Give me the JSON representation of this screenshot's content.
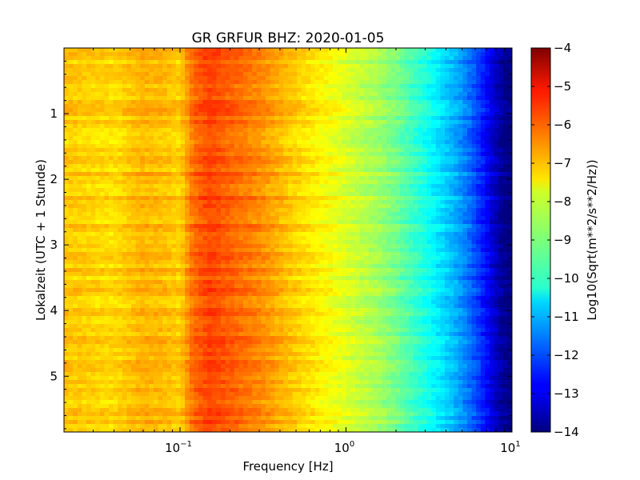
{
  "chart_data": {
    "type": "heatmap",
    "title": "GR GRFUR BHZ: 2020-01-05",
    "xlabel": "Frequency [Hz]",
    "ylabel": "Lokalzeit (UTC + 1 Stunde)",
    "colorbar_label": "Log10(Sqrt(m**2/s**2/Hz))",
    "x_scale": "log",
    "xlim": [
      0.02,
      10
    ],
    "x_ticks": [
      {
        "value": 0.1,
        "base": "10",
        "exp": "−1"
      },
      {
        "value": 1,
        "base": "10",
        "exp": "0"
      },
      {
        "value": 10,
        "base": "10",
        "exp": "1"
      }
    ],
    "ylim": [
      0,
      5.85
    ],
    "y_inverted": true,
    "y_ticks": [
      "1",
      "2",
      "3",
      "4",
      "5"
    ],
    "colorbar_range": [
      -14,
      -4
    ],
    "colorbar_ticks": [
      "−4",
      "−5",
      "−6",
      "−7",
      "−8",
      "−9",
      "−10",
      "−11",
      "−12",
      "−13",
      "−14"
    ],
    "colormap": "jet",
    "x_profile": {
      "frequency_hz": [
        0.02,
        0.04,
        0.06,
        0.08,
        0.1,
        0.12,
        0.15,
        0.2,
        0.3,
        0.5,
        0.8,
        1.0,
        1.5,
        2.0,
        3.0,
        4.0,
        5.0,
        6.0,
        7.0,
        8.0,
        9.0,
        10.0
      ],
      "level": [
        -7.2,
        -7.4,
        -7.0,
        -7.1,
        -7.3,
        -6.3,
        -5.9,
        -6.2,
        -6.6,
        -7.3,
        -7.8,
        -8.1,
        -8.6,
        -9.1,
        -10.0,
        -10.7,
        -11.3,
        -12.0,
        -12.7,
        -13.4,
        -13.9,
        -14.0
      ]
    }
  }
}
